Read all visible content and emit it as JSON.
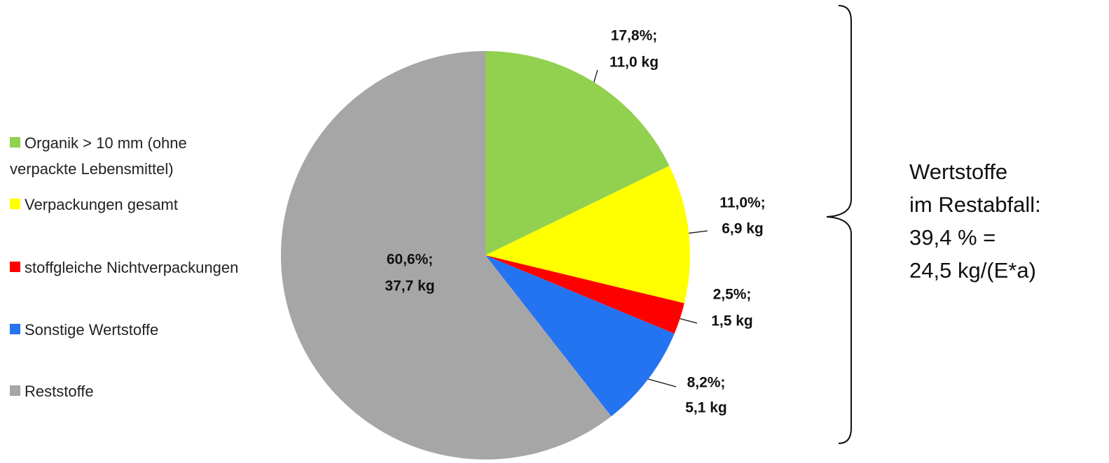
{
  "chart_data": {
    "type": "pie",
    "categories": [
      "Organik > 10 mm (ohne verpackte Lebensmittel)",
      "Verpackungen gesamt",
      "stoffgleiche Nichtverpackungen",
      "Sonstige Wertstoffe",
      "Reststoffe"
    ],
    "values": [
      17.8,
      11.0,
      2.5,
      8.2,
      60.6
    ],
    "value_labels": [
      "17,8%;",
      "11,0%;",
      "2,5%;",
      "8,2%;",
      "60,6%;"
    ],
    "kg_values": [
      11.0,
      6.9,
      1.5,
      5.1,
      37.7
    ],
    "kg_labels": [
      "11,0 kg",
      "6,9 kg",
      "1,5 kg",
      "5,1 kg",
      "37,7 kg"
    ],
    "colors": [
      "#92d050",
      "#ffff00",
      "#ff0000",
      "#2473f0",
      "#a6a6a6"
    ],
    "legend": "left",
    "annotation": [
      "Wertstoffe",
      "im Restabfall:",
      "39,4 % =",
      "24,5 kg/(E*a)"
    ]
  }
}
